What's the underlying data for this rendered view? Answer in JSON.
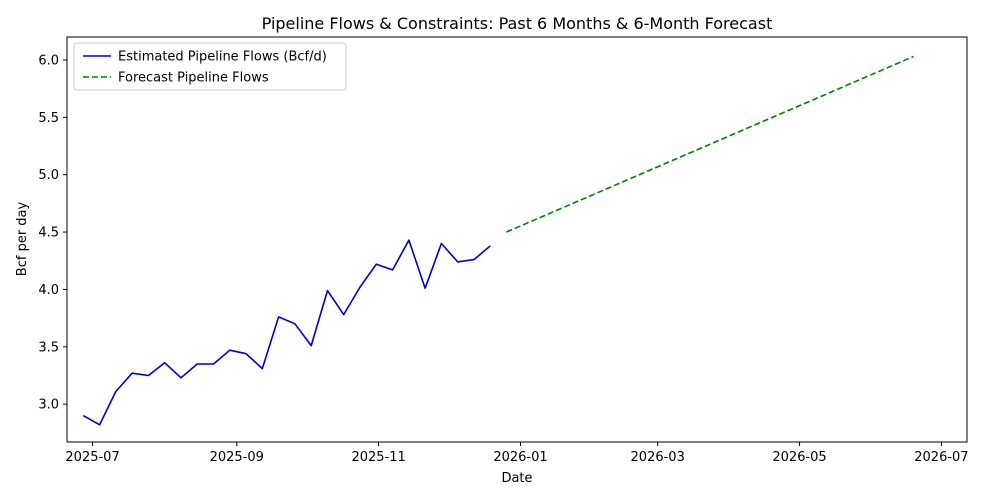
{
  "chart_data": {
    "type": "line",
    "title": "Pipeline Flows & Constraints: Past 6 Months & 6-Month Forecast",
    "xlabel": "Date",
    "ylabel": "Bcf per day",
    "xlim": [
      "2025-06-20",
      "2026-07-12"
    ],
    "ylim": [
      2.67,
      6.2
    ],
    "x_ticks": [
      "2025-07",
      "2025-09",
      "2025-11",
      "2026-01",
      "2026-03",
      "2026-05",
      "2026-07"
    ],
    "y_ticks": [
      "3.0",
      "3.5",
      "4.0",
      "4.5",
      "5.0",
      "5.5",
      "6.0"
    ],
    "legend_position": "top-left",
    "grid": false,
    "series": [
      {
        "name": "Estimated Pipeline Flows (Bcf/d)",
        "color": "#0000cc",
        "style": "solid",
        "points": [
          [
            "2025-06-27",
            2.9
          ],
          [
            "2025-07-04",
            2.82
          ],
          [
            "2025-07-11",
            3.11
          ],
          [
            "2025-07-18",
            3.27
          ],
          [
            "2025-07-25",
            3.25
          ],
          [
            "2025-08-01",
            3.36
          ],
          [
            "2025-08-08",
            3.23
          ],
          [
            "2025-08-15",
            3.35
          ],
          [
            "2025-08-22",
            3.35
          ],
          [
            "2025-08-29",
            3.47
          ],
          [
            "2025-09-05",
            3.44
          ],
          [
            "2025-09-12",
            3.31
          ],
          [
            "2025-09-19",
            3.76
          ],
          [
            "2025-09-26",
            3.7
          ],
          [
            "2025-10-03",
            3.51
          ],
          [
            "2025-10-10",
            3.99
          ],
          [
            "2025-10-17",
            3.78
          ],
          [
            "2025-10-24",
            4.02
          ],
          [
            "2025-10-31",
            4.22
          ],
          [
            "2025-11-07",
            4.17
          ],
          [
            "2025-11-14",
            4.43
          ],
          [
            "2025-11-21",
            4.01
          ],
          [
            "2025-11-28",
            4.4
          ],
          [
            "2025-12-05",
            4.24
          ],
          [
            "2025-12-12",
            4.26
          ],
          [
            "2025-12-19",
            4.38
          ]
        ]
      },
      {
        "name": "Forecast Pipeline Flows",
        "color": "#008000",
        "style": "dashed",
        "points": [
          [
            "2025-12-26",
            4.5
          ],
          [
            "2026-06-19",
            6.03
          ]
        ]
      }
    ]
  }
}
